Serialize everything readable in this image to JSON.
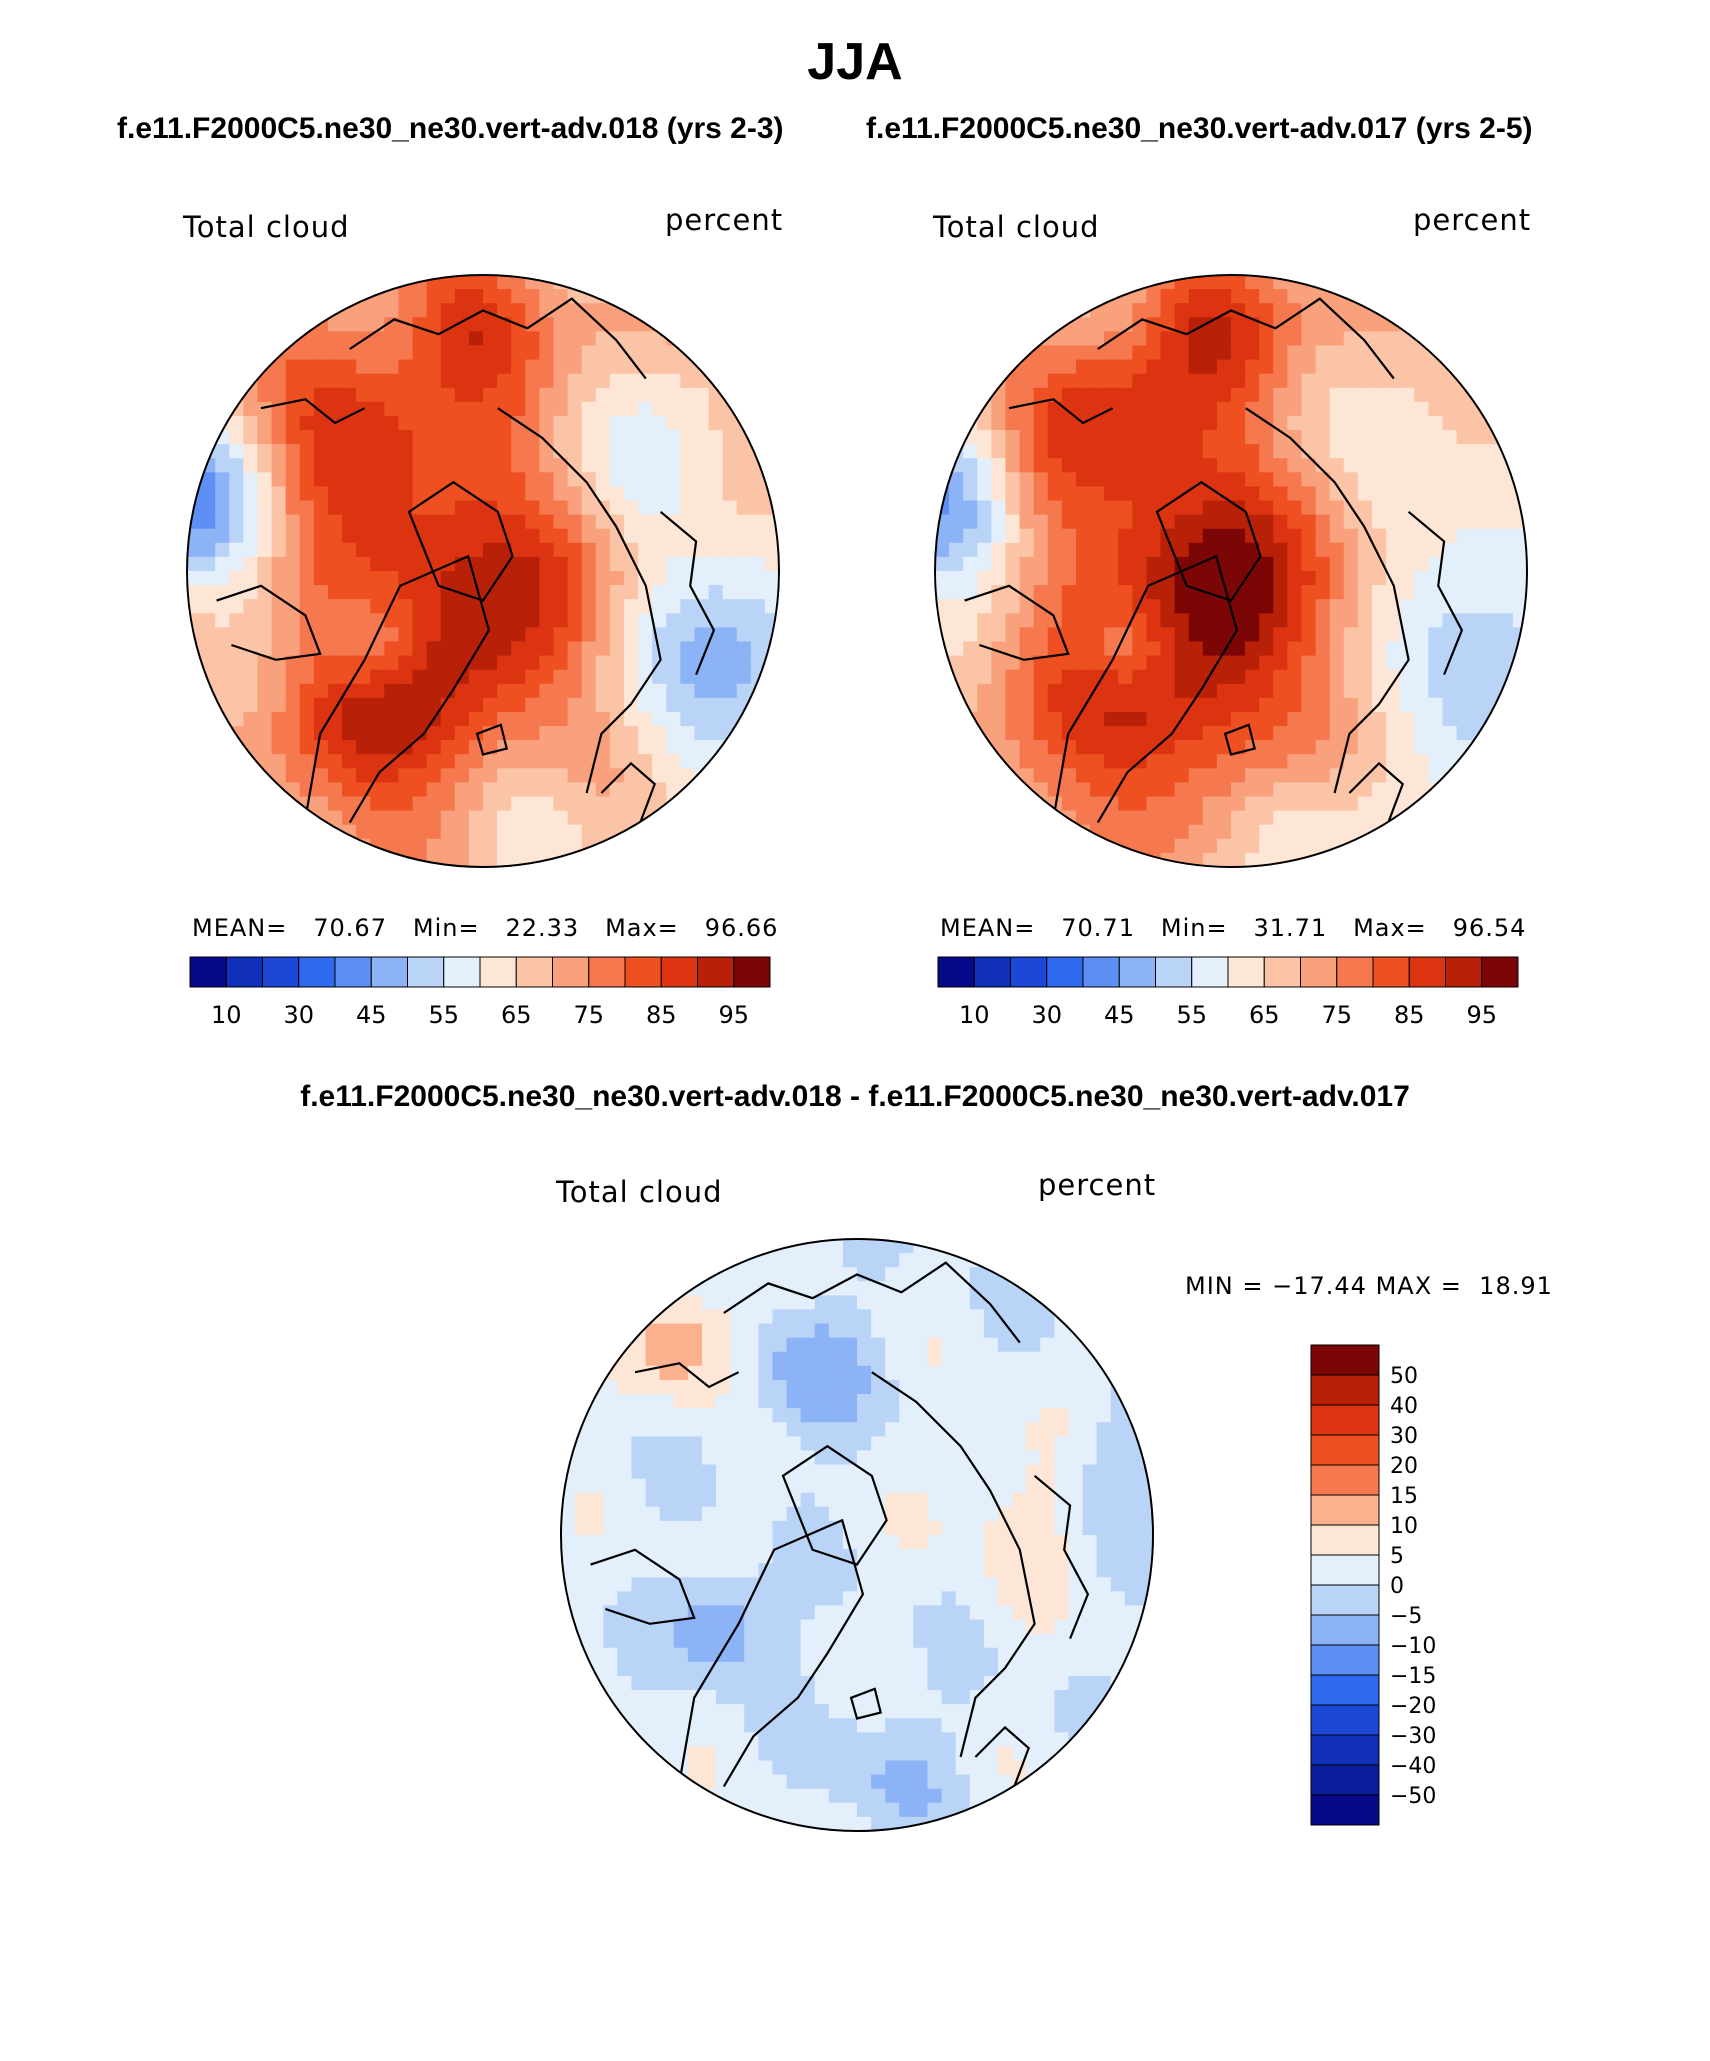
{
  "figure": {
    "title": "JJA",
    "subtitle_left": "f.e11.F2000C5.ne30_ne30.vert-adv.018 (yrs 2-3)",
    "subtitle_right": "f.e11.F2000C5.ne30_ne30.vert-adv.017 (yrs 2-5)",
    "diff_title": "f.e11.F2000C5.ne30_ne30.vert-adv.018 - f.e11.F2000C5.ne30_ne30.vert-adv.017"
  },
  "colors": {
    "abs_palette": [
      "#08088a",
      "#0f2fb8",
      "#1c48d8",
      "#2d6af0",
      "#5e8ff5",
      "#8db3f7",
      "#bad4f8",
      "#e3f0fb",
      "#fde6d5",
      "#fcc4a6",
      "#f9a07c",
      "#f5784f",
      "#ee5022",
      "#dc3410",
      "#b82008",
      "#7c0606"
    ],
    "diff_palette": [
      "#7c0606",
      "#b82008",
      "#dc3410",
      "#ee5022",
      "#f5784f",
      "#fbb18e",
      "#fde6d5",
      "#e3f0fb",
      "#bad4f8",
      "#8db3f7",
      "#5e8ff5",
      "#2d6af0",
      "#1c48d8",
      "#0f2fb8",
      "#0a1e9c",
      "#08088a"
    ]
  },
  "chart_data": [
    {
      "type": "heatmap",
      "projection": "north polar stereographic",
      "variable": "Total cloud",
      "units": "percent",
      "stats": {
        "mean_label": "MEAN=",
        "mean": "70.67",
        "min_label": "Min=",
        "min": "22.33",
        "max_label": "Max=",
        "max": "96.66"
      },
      "colorbar_ticks": [
        "10",
        "30",
        "45",
        "55",
        "65",
        "75",
        "85",
        "95"
      ],
      "colorbar_levels": [
        5,
        10,
        20,
        30,
        40,
        45,
        50,
        55,
        60,
        65,
        70,
        75,
        80,
        85,
        90,
        95
      ]
    },
    {
      "type": "heatmap",
      "projection": "north polar stereographic",
      "variable": "Total cloud",
      "units": "percent",
      "stats": {
        "mean_label": "MEAN=",
        "mean": "70.71",
        "min_label": "Min=",
        "min": "31.71",
        "max_label": "Max=",
        "max": "96.54"
      },
      "colorbar_ticks": [
        "10",
        "30",
        "45",
        "55",
        "65",
        "75",
        "85",
        "95"
      ],
      "colorbar_levels": [
        5,
        10,
        20,
        30,
        40,
        45,
        50,
        55,
        60,
        65,
        70,
        75,
        80,
        85,
        90,
        95
      ]
    },
    {
      "type": "heatmap",
      "projection": "north polar stereographic",
      "variable": "Total cloud",
      "units": "percent",
      "stats": {
        "min_label": "MIN =",
        "min": "−17.44",
        "max_label": "MAX =",
        "max": "18.91"
      },
      "colorbar_ticks": [
        "50",
        "40",
        "30",
        "20",
        "15",
        "10",
        "5",
        "0",
        "−5",
        "−10",
        "−15",
        "−20",
        "−30",
        "−40",
        "−50"
      ]
    }
  ]
}
